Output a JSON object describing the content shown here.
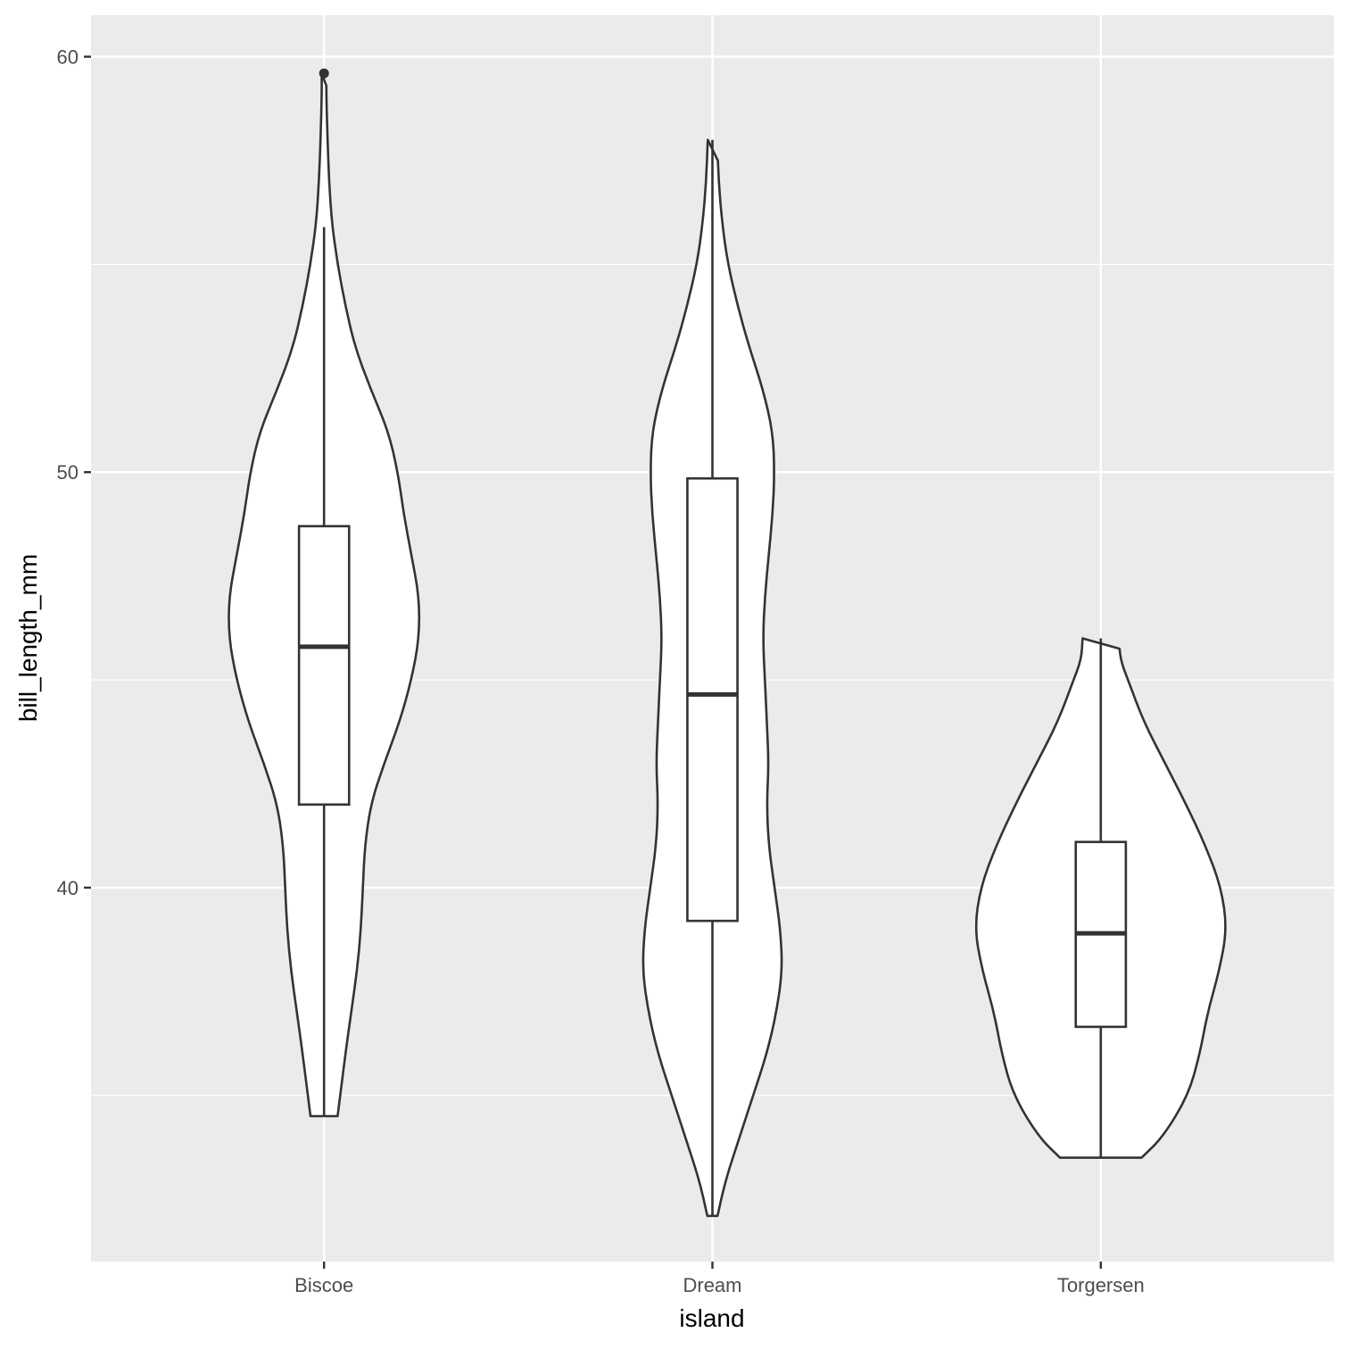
{
  "chart_data": {
    "type": "violin",
    "xlabel": "island",
    "ylabel": "bill_length_mm",
    "categories": [
      "Biscoe",
      "Dream",
      "Torgersen"
    ],
    "ylim": [
      31.0,
      61.0
    ],
    "y_ticks": [
      40,
      50,
      60
    ],
    "y_minor": [
      35,
      45,
      55
    ],
    "grid": true,
    "legend": "none",
    "colors": {
      "panel": "#ebebeb",
      "grid": "#ffffff",
      "outline": "#333333",
      "fill": "#ffffff",
      "tick_label": "#4d4d4d",
      "title": "#000000"
    },
    "series": [
      {
        "category": "Biscoe",
        "violin": {
          "y": [
            34.5,
            36.0,
            37.0,
            38.0,
            39.0,
            40.0,
            41.0,
            42.0,
            43.0,
            44.0,
            45.0,
            46.0,
            47.0,
            48.0,
            49.0,
            50.0,
            51.0,
            52.0,
            53.0,
            54.0,
            55.0,
            56.0,
            57.0,
            58.0,
            59.0,
            59.6
          ],
          "half_width": [
            0.035,
            0.055,
            0.07,
            0.085,
            0.095,
            0.1,
            0.105,
            0.12,
            0.155,
            0.195,
            0.225,
            0.245,
            0.245,
            0.225,
            0.205,
            0.19,
            0.165,
            0.12,
            0.08,
            0.055,
            0.035,
            0.02,
            0.013,
            0.009,
            0.006,
            0.006
          ]
        },
        "box": {
          "whisker_low": 34.5,
          "q1": 42.0,
          "median": 45.8,
          "q3": 48.7,
          "whisker_high": 55.9
        },
        "outliers": [
          59.6
        ]
      },
      {
        "category": "Dream",
        "violin": {
          "y": [
            32.1,
            33.0,
            34.0,
            35.0,
            36.0,
            37.0,
            38.0,
            39.0,
            40.0,
            41.0,
            42.0,
            43.0,
            44.0,
            45.0,
            46.0,
            47.0,
            48.0,
            49.0,
            50.0,
            51.0,
            52.0,
            53.0,
            54.0,
            55.0,
            56.0,
            57.0,
            58.0
          ],
          "half_width": [
            0.013,
            0.035,
            0.07,
            0.105,
            0.14,
            0.165,
            0.18,
            0.175,
            0.16,
            0.145,
            0.14,
            0.145,
            0.14,
            0.135,
            0.13,
            0.135,
            0.145,
            0.155,
            0.16,
            0.155,
            0.13,
            0.095,
            0.065,
            0.04,
            0.025,
            0.016,
            0.012
          ]
        },
        "box": {
          "whisker_low": 32.1,
          "q1": 39.2,
          "median": 44.65,
          "q3": 49.85,
          "whisker_high": 58.0
        },
        "outliers": []
      },
      {
        "category": "Torgersen",
        "violin": {
          "y": [
            33.5,
            34.0,
            35.0,
            36.0,
            37.0,
            38.0,
            39.0,
            40.0,
            41.0,
            42.0,
            43.0,
            44.0,
            45.0,
            45.5,
            46.0
          ],
          "half_width": [
            0.105,
            0.16,
            0.225,
            0.255,
            0.275,
            0.305,
            0.325,
            0.31,
            0.27,
            0.22,
            0.165,
            0.11,
            0.07,
            0.05,
            0.047
          ]
        },
        "box": {
          "whisker_low": 33.5,
          "q1": 36.65,
          "median": 38.9,
          "q3": 41.1,
          "whisker_high": 46.0
        },
        "outliers": []
      }
    ]
  }
}
